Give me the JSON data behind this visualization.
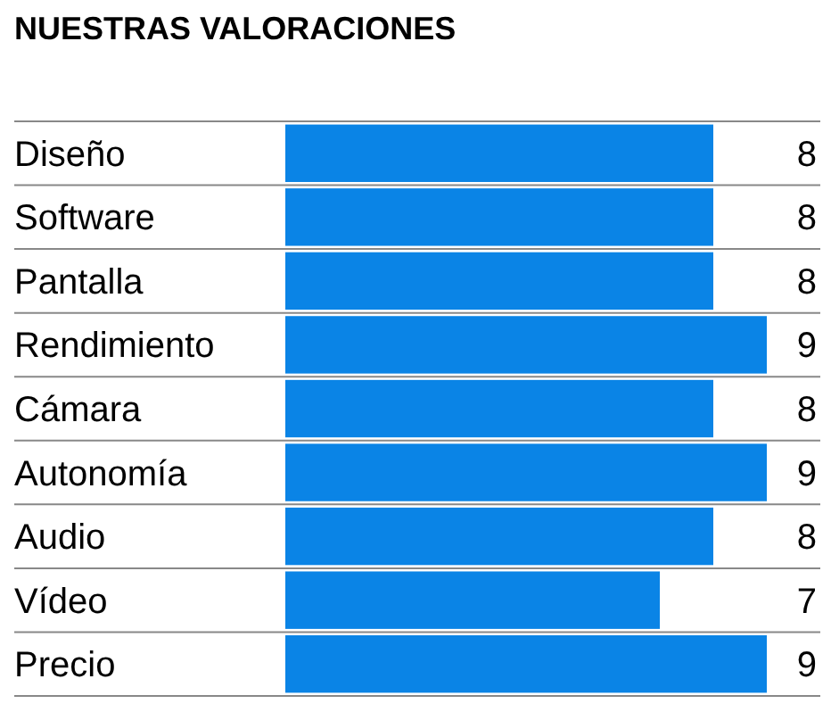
{
  "chart_data": {
    "type": "bar",
    "orientation": "horizontal",
    "title": "NUESTRAS VALORACIONES",
    "categories": [
      "Diseño",
      "Software",
      "Pantalla",
      "Rendimiento",
      "Cámara",
      "Autonomía",
      "Audio",
      "Vídeo",
      "Precio"
    ],
    "values": [
      8,
      8,
      8,
      9,
      8,
      9,
      8,
      7,
      9
    ],
    "color": "#0a84e6",
    "xlim": [
      0,
      10
    ],
    "tick_labels": "y",
    "data_labels": true,
    "grid": "y"
  }
}
